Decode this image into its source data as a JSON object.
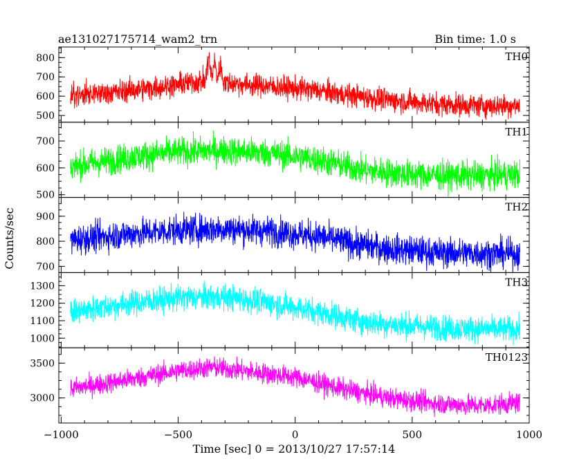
{
  "header": {
    "title": "ae131027175714_wam2_trn",
    "bin_time": "Bin time: 1.0 s"
  },
  "chart_data": {
    "type": "line",
    "title": "ae131027175714_wam2_trn",
    "xlabel": "Time [sec] 0 = 2013/10/27 17:57:14",
    "ylabel": "Counts/sec",
    "xlim": [
      -1010,
      1000
    ],
    "x_ticks": [
      -1000,
      -500,
      0,
      500,
      1000
    ],
    "x_tick_labels": [
      "−1000",
      "−500",
      "0",
      "500",
      "1000"
    ],
    "x_range": [
      -960,
      960
    ],
    "shared_x_axis": true,
    "panels": [
      {
        "name": "TH0",
        "color": "#ff0000",
        "ylim": [
          465,
          855
        ],
        "y_ticks": [
          500,
          600,
          700,
          800
        ],
        "trend": [
          [
            -960,
            600
          ],
          [
            -700,
            630
          ],
          [
            -500,
            660
          ],
          [
            -400,
            680
          ],
          [
            -300,
            670
          ],
          [
            -100,
            650
          ],
          [
            100,
            630
          ],
          [
            200,
            610
          ],
          [
            400,
            580
          ],
          [
            600,
            560
          ],
          [
            800,
            550
          ],
          [
            960,
            550
          ]
        ],
        "noise": 42,
        "spikes": [
          {
            "x": -370,
            "peak": 845
          },
          {
            "x": -345,
            "peak": 815
          },
          {
            "x": -320,
            "peak": 790
          }
        ]
      },
      {
        "name": "TH1",
        "color": "#00ff00",
        "ylim": [
          490,
          770
        ],
        "y_ticks": [
          500,
          600,
          700
        ],
        "trend": [
          [
            -960,
            605
          ],
          [
            -700,
            640
          ],
          [
            -500,
            660
          ],
          [
            -300,
            665
          ],
          [
            -100,
            655
          ],
          [
            100,
            630
          ],
          [
            300,
            590
          ],
          [
            500,
            575
          ],
          [
            700,
            570
          ],
          [
            960,
            575
          ]
        ],
        "noise": 38,
        "spikes": []
      },
      {
        "name": "TH2",
        "color": "#0000ff",
        "ylim": [
          675,
          975
        ],
        "y_ticks": [
          700,
          800,
          900
        ],
        "trend": [
          [
            -960,
            805
          ],
          [
            -700,
            830
          ],
          [
            -500,
            845
          ],
          [
            -300,
            850
          ],
          [
            -100,
            840
          ],
          [
            100,
            820
          ],
          [
            250,
            790
          ],
          [
            400,
            770
          ],
          [
            600,
            755
          ],
          [
            960,
            750
          ]
        ],
        "noise": 42,
        "spikes": []
      },
      {
        "name": "TH3",
        "color": "#00ffff",
        "ylim": [
          945,
          1375
        ],
        "y_ticks": [
          1000,
          1100,
          1200,
          1300
        ],
        "trend": [
          [
            -960,
            1150
          ],
          [
            -700,
            1200
          ],
          [
            -500,
            1230
          ],
          [
            -300,
            1235
          ],
          [
            -100,
            1200
          ],
          [
            100,
            1150
          ],
          [
            300,
            1090
          ],
          [
            500,
            1070
          ],
          [
            700,
            1055
          ],
          [
            960,
            1050
          ]
        ],
        "noise": 52,
        "spikes": []
      },
      {
        "name": "TH0123",
        "color": "#ff00ff",
        "ylim": [
          2640,
          3720
        ],
        "y_ticks": [
          3000,
          3500
        ],
        "trend": [
          [
            -960,
            3130
          ],
          [
            -700,
            3270
          ],
          [
            -500,
            3390
          ],
          [
            -350,
            3440
          ],
          [
            -200,
            3380
          ],
          [
            0,
            3300
          ],
          [
            200,
            3130
          ],
          [
            400,
            3000
          ],
          [
            600,
            2920
          ],
          [
            800,
            2890
          ],
          [
            960,
            2930
          ]
        ],
        "noise": 105,
        "spikes": []
      }
    ],
    "grid": false,
    "legend": "panel labels top-right"
  }
}
